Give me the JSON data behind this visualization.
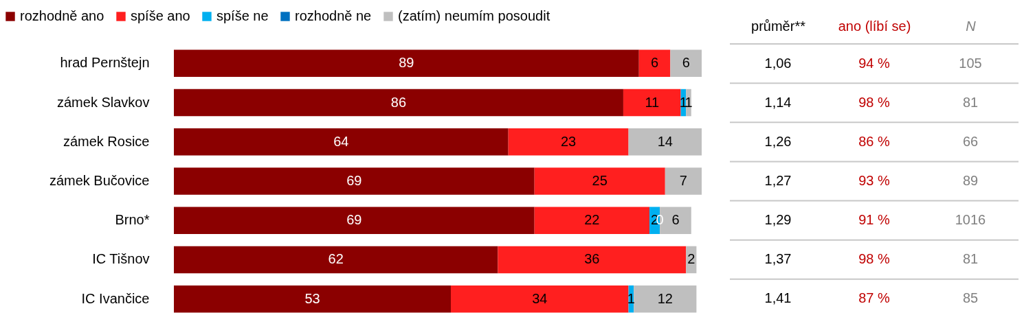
{
  "chart_data": [
    {
      "type": "bar",
      "orientation": "horizontal",
      "stacked": true,
      "data_labels": true,
      "legend": "top left",
      "categories": [
        "hrad Pernštejn",
        "zámek Slavkov",
        "zámek Rosice",
        "zámek Bučovice",
        "Brno*",
        "IC Tišnov",
        "IC Ivančice"
      ],
      "series": [
        {
          "name": "rozhodně ano",
          "color": "#8b0000",
          "values": [
            89,
            86,
            64,
            69,
            69,
            62,
            53
          ]
        },
        {
          "name": "spíše ano",
          "color": "#ff1f1f",
          "values": [
            6,
            11,
            23,
            25,
            22,
            36,
            34
          ]
        },
        {
          "name": "spíše ne",
          "color": "#00b0f0",
          "values": [
            null,
            1,
            null,
            null,
            2,
            null,
            1
          ]
        },
        {
          "name": "rozhodně ne",
          "color": "#0070c0",
          "values": [
            null,
            null,
            null,
            null,
            0,
            null,
            null
          ]
        },
        {
          "name": "(zatím) neumím posoudit",
          "color": "#bfbfbf",
          "values": [
            6,
            1,
            14,
            7,
            6,
            2,
            12
          ]
        }
      ]
    },
    {
      "type": "heatmap",
      "categories": [
        "průměr**",
        "ano (líbí se)",
        "N"
      ],
      "y_categories": [
        null,
        null,
        null,
        null,
        null,
        null,
        null
      ],
      "cells": [
        [
          1.06,
          94,
          105
        ],
        [
          1.14,
          98,
          81
        ],
        [
          1.26,
          86,
          66
        ],
        [
          1.27,
          93,
          89
        ],
        [
          1.29,
          91,
          1016
        ],
        [
          1.37,
          98,
          81
        ],
        [
          1.41,
          87,
          85
        ]
      ],
      "cell_labels": [
        [
          "1,06",
          "94 %",
          "105"
        ],
        [
          "1,14",
          "98 %",
          "81"
        ],
        [
          "1,26",
          "86 %",
          "66"
        ],
        [
          "1,27",
          "93 %",
          "89"
        ],
        [
          "1,29",
          "91 %",
          "1016"
        ],
        [
          "1,37",
          "98 %",
          "81"
        ],
        [
          "1,41",
          "87 %",
          "85"
        ]
      ]
    }
  ]
}
